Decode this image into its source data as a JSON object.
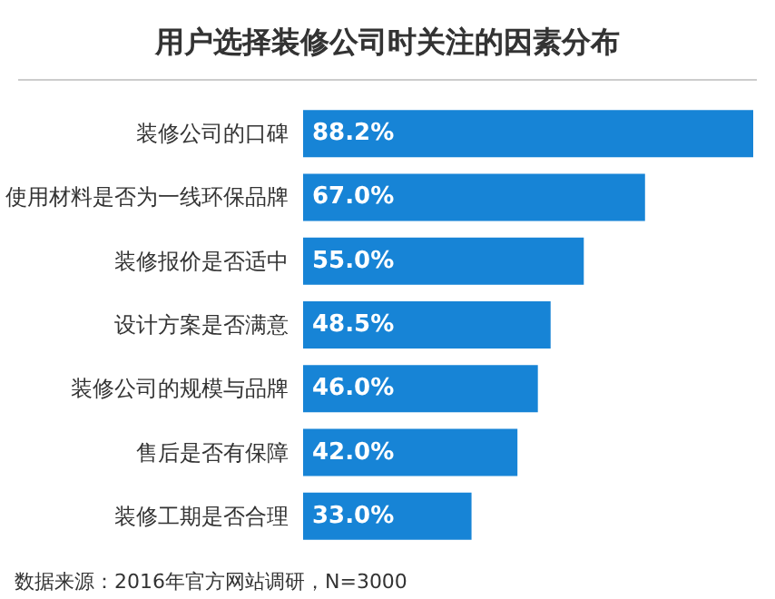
{
  "chart_data": {
    "type": "bar",
    "orientation": "horizontal",
    "title": "用户选择装修公司时关注的因素分布",
    "categories": [
      "装修公司的口碑",
      "使用材料是否为一线环保品牌",
      "装修报价是否适中",
      "设计方案是否满意",
      "装修公司的规模与品牌",
      "售后是否有保障",
      "装修工期是否合理"
    ],
    "values": [
      88.2,
      67.0,
      55.0,
      48.5,
      46.0,
      42.0,
      33.0
    ],
    "value_labels": [
      "88.2%",
      "67.0%",
      "55.0%",
      "48.5%",
      "46.0%",
      "42.0%",
      "33.0%"
    ],
    "color": "#1784d6",
    "annotations": [
      "数据来源：2016年官方网站调研，N=3000"
    ]
  }
}
